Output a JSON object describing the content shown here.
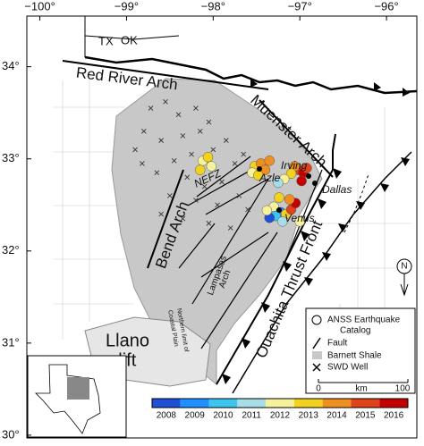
{
  "axes": {
    "lon_ticks": [
      {
        "value": -100,
        "label": "−100°"
      },
      {
        "value": -99,
        "label": "−99°"
      },
      {
        "value": -98,
        "label": "−98°"
      },
      {
        "value": -97,
        "label": "−97°"
      },
      {
        "value": -96,
        "label": "−96°"
      }
    ],
    "lat_ticks": [
      {
        "value": 34,
        "label": "34°"
      },
      {
        "value": 33,
        "label": "33°"
      },
      {
        "value": 32,
        "label": "32°"
      },
      {
        "value": 31,
        "label": "31°"
      },
      {
        "value": 30,
        "label": "30°"
      }
    ],
    "lonlim": [
      -100.15,
      -95.65
    ],
    "latlim": [
      34.55,
      29.97
    ]
  },
  "labels": {
    "tx": "TX",
    "ok": "OK",
    "red_river_arch": "Red River Arch",
    "muenster_arch": "Muenster Arch",
    "nefz": "NEFZ",
    "azle": "Azle",
    "irving": "Irving",
    "dallas": "Dallas",
    "venus": "Venus",
    "bend_arch": "Bend Arch",
    "coastal_plain_1": "Northern limit of",
    "coastal_plain_2": "Coastal Plain",
    "lampasas_1": "Lampasas",
    "lampasas_2": "Arch",
    "ouachita": "Ouachita Thrust Front",
    "llano_1": "Llano",
    "llano_2": "uplift",
    "north": "N"
  },
  "legend": {
    "earthquake_1": "ANSS Earthquake",
    "earthquake_2": "Catalog",
    "fault": "Fault",
    "shale": "Barnett Shale",
    "well": "SWD Well",
    "scale_0": "0",
    "scale_unit": "km",
    "scale_100": "100"
  },
  "colorbar": {
    "years": [
      2008,
      2009,
      2010,
      2011,
      2012,
      2013,
      2014,
      2015,
      2016
    ],
    "colors": [
      "#1f4fd6",
      "#1e90ff",
      "#3cc6ef",
      "#a6dde6",
      "#f6f29c",
      "#f3d21e",
      "#ef8f1f",
      "#e0421a",
      "#c40000"
    ]
  },
  "earthquakes": [
    {
      "lon": -98.12,
      "lat": 32.98,
      "year": 2012
    },
    {
      "lon": -98.06,
      "lat": 33.02,
      "year": 2013
    },
    {
      "lon": -98.02,
      "lat": 32.92,
      "year": 2012
    },
    {
      "lon": -98.15,
      "lat": 32.88,
      "year": 2013
    },
    {
      "lon": -97.52,
      "lat": 32.92,
      "year": 2013
    },
    {
      "lon": -97.45,
      "lat": 32.95,
      "year": 2014
    },
    {
      "lon": -97.4,
      "lat": 32.88,
      "year": 2014
    },
    {
      "lon": -97.55,
      "lat": 32.85,
      "year": 2012
    },
    {
      "lon": -97.48,
      "lat": 32.82,
      "year": 2013
    },
    {
      "lon": -97.35,
      "lat": 32.98,
      "year": 2014
    },
    {
      "lon": -97.02,
      "lat": 32.88,
      "year": 2015
    },
    {
      "lon": -96.96,
      "lat": 32.85,
      "year": 2016
    },
    {
      "lon": -96.92,
      "lat": 32.9,
      "year": 2015
    },
    {
      "lon": -97.06,
      "lat": 32.92,
      "year": 2014
    },
    {
      "lon": -97.1,
      "lat": 32.84,
      "year": 2013
    },
    {
      "lon": -96.98,
      "lat": 32.76,
      "year": 2016
    },
    {
      "lon": -97.18,
      "lat": 32.78,
      "year": 2012
    },
    {
      "lon": -97.25,
      "lat": 32.74,
      "year": 2011
    },
    {
      "lon": -97.3,
      "lat": 32.48,
      "year": 2012
    },
    {
      "lon": -97.22,
      "lat": 32.42,
      "year": 2009
    },
    {
      "lon": -97.28,
      "lat": 32.38,
      "year": 2010
    },
    {
      "lon": -97.16,
      "lat": 32.4,
      "year": 2013
    },
    {
      "lon": -97.1,
      "lat": 32.45,
      "year": 2015
    },
    {
      "lon": -97.05,
      "lat": 32.52,
      "year": 2016
    },
    {
      "lon": -97.35,
      "lat": 32.36,
      "year": 2008
    },
    {
      "lon": -97.2,
      "lat": 32.32,
      "year": 2011
    },
    {
      "lon": -97.12,
      "lat": 32.56,
      "year": 2014
    },
    {
      "lon": -97.38,
      "lat": 32.44,
      "year": 2012
    },
    {
      "lon": -97.24,
      "lat": 32.58,
      "year": 2013
    },
    {
      "lon": -97.0,
      "lat": 32.32,
      "year": 2012
    }
  ],
  "wells": [
    [
      -98.72,
      33.55
    ],
    [
      -98.55,
      33.62
    ],
    [
      -98.4,
      33.48
    ],
    [
      -98.2,
      33.55
    ],
    [
      -98.8,
      33.3
    ],
    [
      -98.6,
      33.2
    ],
    [
      -98.35,
      33.25
    ],
    [
      -98.15,
      33.3
    ],
    [
      -98.0,
      33.1
    ],
    [
      -98.25,
      33.05
    ],
    [
      -98.45,
      32.98
    ],
    [
      -98.65,
      32.85
    ],
    [
      -98.3,
      32.8
    ],
    [
      -98.1,
      32.7
    ],
    [
      -97.9,
      32.75
    ],
    [
      -98.5,
      32.6
    ],
    [
      -98.2,
      32.55
    ],
    [
      -97.95,
      32.5
    ],
    [
      -97.7,
      32.6
    ],
    [
      -97.6,
      32.45
    ],
    [
      -98.35,
      32.35
    ],
    [
      -98.05,
      32.3
    ],
    [
      -97.8,
      32.25
    ],
    [
      -98.6,
      32.4
    ],
    [
      -98.82,
      32.95
    ],
    [
      -98.9,
      33.1
    ],
    [
      -97.75,
      32.95
    ],
    [
      -97.65,
      33.05
    ],
    [
      -97.85,
      33.2
    ],
    [
      -98.05,
      33.4
    ]
  ]
}
